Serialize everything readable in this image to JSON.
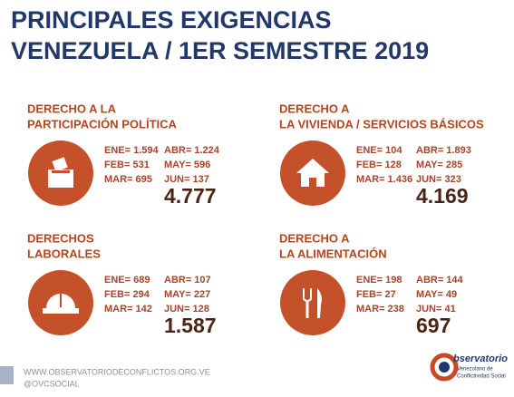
{
  "header": {
    "title": [
      "PRINCIPALES EXIGENCIAS",
      "VENEZUELA / 1ER SEMESTRE 2019"
    ]
  },
  "panels": [
    {
      "title": [
        "DERECHO A LA",
        "PARTICIPACIÓN POLÍTICA"
      ],
      "stats": [
        "ENE= 1.594",
        "ABR= 1.224",
        "FEB= 531",
        "MAY= 596",
        "MAR= 695",
        "JUN= 137"
      ],
      "total": "4.777"
    },
    {
      "title": [
        "DERECHO A",
        "LA VIVIENDA / SERVICIOS BÁSICOS"
      ],
      "stats": [
        "ENE= 104",
        "ABR= 1.893",
        "FEB= 128",
        "MAY= 285",
        "MAR= 1.436",
        "JUN= 323"
      ],
      "total": "4.169"
    },
    {
      "title": [
        "DERECHOS",
        "LABORALES"
      ],
      "stats": [
        "ENE= 689",
        "ABR= 107",
        "FEB= 294",
        "MAY= 227",
        "MAR= 142",
        "JUN= 128"
      ],
      "total": "1.587"
    },
    {
      "title": [
        "DERECHO A",
        "LA ALIMENTACIÓN"
      ],
      "stats": [
        "ENE= 198",
        "ABR= 144",
        "FEB= 27",
        "MAY= 49",
        "MAR= 238",
        "JUN= 41"
      ],
      "total": "697"
    }
  ],
  "footer": {
    "website": "WWW.OBSERVATORIODECONFLICTOS.ORG.VE",
    "handle": "@OVCSOCIAL",
    "logo": [
      "bservatorio",
      "Venezolano de",
      "Conflictividad Social"
    ]
  }
}
